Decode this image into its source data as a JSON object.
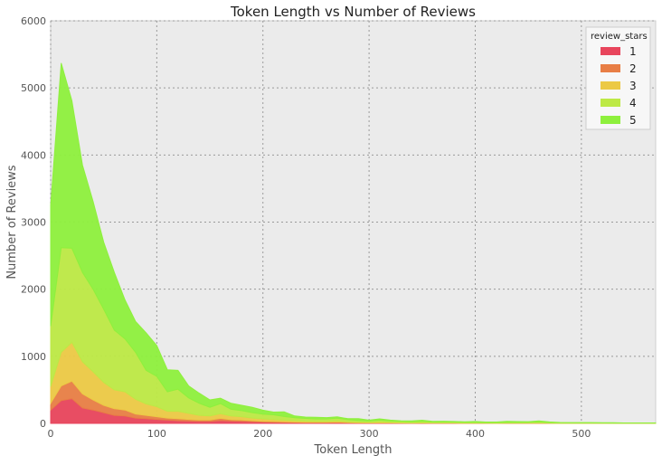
{
  "chart_data": {
    "type": "area",
    "stacked": true,
    "title": "Token Length vs Number of Reviews",
    "xlabel": "Token Length",
    "ylabel": "Number of Reviews",
    "xlim": [
      0,
      570
    ],
    "ylim": [
      0,
      6000
    ],
    "xticks": [
      0,
      100,
      200,
      300,
      400,
      500
    ],
    "yticks": [
      0,
      1000,
      2000,
      3000,
      4000,
      5000,
      6000
    ],
    "grid": true,
    "legend": {
      "title": "review_stars",
      "position": "top-right"
    },
    "x": [
      0,
      10,
      20,
      30,
      40,
      50,
      60,
      70,
      80,
      90,
      100,
      110,
      120,
      130,
      140,
      150,
      160,
      170,
      180,
      190,
      200,
      210,
      220,
      230,
      240,
      250,
      260,
      270,
      280,
      290,
      300,
      310,
      320,
      330,
      340,
      350,
      360,
      370,
      380,
      390,
      400,
      410,
      420,
      430,
      440,
      450,
      460,
      470,
      480,
      490,
      500,
      510,
      520,
      530,
      540,
      550,
      560,
      570
    ],
    "series": [
      {
        "name": "1",
        "color": "#e8455c",
        "values": [
          200,
          340,
          370,
          230,
          200,
          160,
          120,
          110,
          80,
          70,
          60,
          50,
          40,
          35,
          30,
          30,
          45,
          35,
          30,
          25,
          20,
          18,
          15,
          12,
          10,
          10,
          10,
          12,
          8,
          6,
          5,
          6,
          5,
          4,
          3,
          4,
          3,
          3,
          3,
          2,
          2,
          2,
          1,
          2,
          2,
          2,
          3,
          2,
          1,
          1,
          1,
          1,
          1,
          1,
          1,
          1,
          1,
          1
        ]
      },
      {
        "name": "2",
        "color": "#e87e45",
        "values": [
          100,
          220,
          260,
          210,
          150,
          110,
          100,
          90,
          60,
          50,
          40,
          30,
          30,
          25,
          20,
          20,
          30,
          20,
          20,
          15,
          12,
          10,
          8,
          8,
          6,
          6,
          6,
          8,
          5,
          4,
          3,
          5,
          3,
          3,
          2,
          3,
          2,
          2,
          2,
          1,
          2,
          1,
          1,
          1,
          1,
          2,
          2,
          1,
          1,
          1,
          1,
          1,
          1,
          1,
          1,
          1,
          1,
          1
        ]
      },
      {
        "name": "3",
        "color": "#ecc945",
        "values": [
          250,
          500,
          580,
          480,
          420,
          340,
          280,
          270,
          220,
          170,
          150,
          100,
          110,
          90,
          70,
          60,
          70,
          55,
          50,
          40,
          35,
          30,
          25,
          20,
          18,
          15,
          15,
          18,
          12,
          10,
          8,
          12,
          8,
          7,
          6,
          7,
          5,
          5,
          5,
          4,
          4,
          3,
          3,
          4,
          4,
          4,
          5,
          3,
          2,
          2,
          2,
          2,
          2,
          1,
          1,
          1,
          1,
          1
        ]
      },
      {
        "name": "4",
        "color": "#bde945",
        "values": [
          900,
          1560,
          1400,
          1330,
          1230,
          1090,
          890,
          790,
          700,
          500,
          450,
          290,
          330,
          230,
          180,
          130,
          150,
          100,
          90,
          80,
          70,
          70,
          55,
          45,
          40,
          35,
          35,
          40,
          30,
          25,
          20,
          25,
          20,
          15,
          15,
          18,
          12,
          12,
          10,
          9,
          10,
          8,
          8,
          10,
          10,
          10,
          14,
          8,
          5,
          4,
          4,
          4,
          3,
          3,
          2,
          2,
          2,
          2
        ]
      },
      {
        "name": "5",
        "color": "#8ef03d",
        "values": [
          1800,
          2750,
          2200,
          1600,
          1310,
          1000,
          860,
          580,
          460,
          560,
          460,
          330,
          280,
          180,
          150,
          110,
          80,
          90,
          80,
          80,
          60,
          40,
          70,
          25,
          20,
          25,
          20,
          20,
          15,
          25,
          12,
          20,
          12,
          10,
          10,
          15,
          8,
          10,
          8,
          8,
          10,
          6,
          7,
          12,
          10,
          8,
          14,
          8,
          5,
          4,
          4,
          4,
          3,
          3,
          2,
          2,
          2,
          2
        ]
      }
    ]
  }
}
